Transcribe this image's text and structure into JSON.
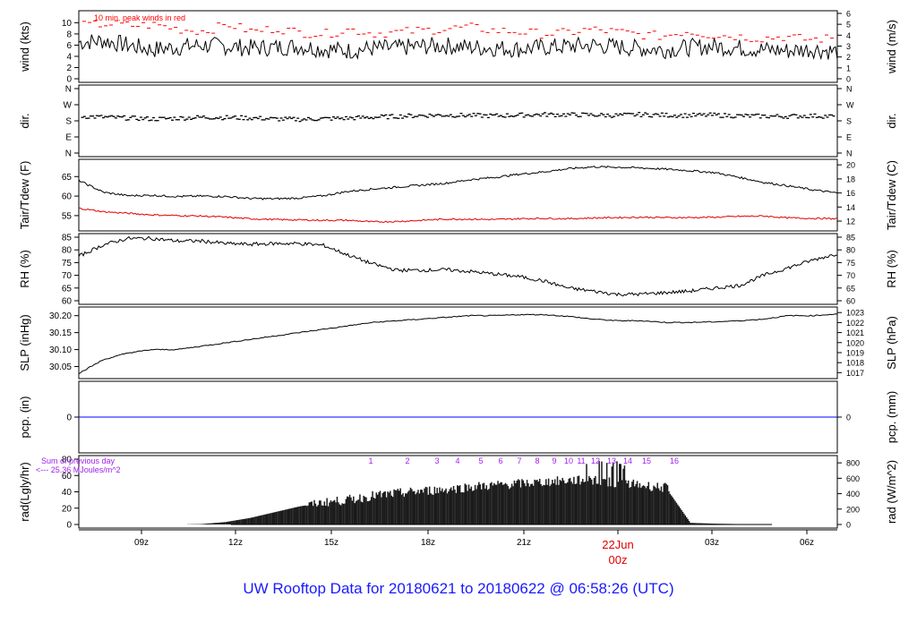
{
  "chart_data": [
    {
      "type": "line",
      "panel": "wind",
      "ylabel_left": "wind (kts)",
      "ylabel_right": "wind (m/s)",
      "ylim": [
        0,
        11.5
      ],
      "left_ticks": [
        "0",
        "2",
        "4",
        "6",
        "8",
        "10"
      ],
      "right_ticks": [
        "0",
        "1",
        "2",
        "3",
        "4",
        "5",
        "6"
      ],
      "annotation": "10 min. peak winds in red",
      "series": [
        {
          "values": [
            6.5,
            6.8,
            6.0,
            5.2,
            5.6,
            6.0,
            5.8,
            5.5,
            5.6,
            5.8,
            5.3,
            5.0,
            5.4,
            5.5,
            5.8,
            5.9,
            5.6,
            5.5,
            5.3,
            5.6,
            5.8,
            6.0,
            5.7,
            5.4,
            5.2,
            5.6,
            5.8,
            5.5,
            5.2,
            5.0,
            5.3,
            4.8
          ]
        },
        {
          "values": [
            9.5,
            9.8,
            9.5,
            9.6,
            8.8,
            8.5,
            9.7,
            8.4,
            9.0,
            8.2,
            8.0,
            8.8,
            8.1,
            8.3,
            8.6,
            8.9,
            9.2,
            8.6,
            8.4,
            8.0,
            8.2,
            8.8,
            8.4,
            7.9,
            7.6,
            8.5,
            7.8,
            7.6,
            7.2,
            7.5,
            7.0,
            7.2
          ],
          "color": "#ff0000"
        }
      ]
    },
    {
      "type": "scatter",
      "panel": "dir",
      "ylabel_left": "dir.",
      "ylabel_right": "dir.",
      "left_ticks": [
        "N",
        "E",
        "S",
        "W",
        "N"
      ],
      "right_ticks": [
        "N",
        "E",
        "S",
        "W",
        "N"
      ],
      "ylim": [
        0,
        360
      ],
      "series": [
        {
          "values": [
            205,
            200,
            195,
            190,
            195,
            200,
            198,
            196,
            190,
            188,
            192,
            195,
            200,
            205,
            210,
            212,
            210,
            208,
            212,
            215,
            214,
            213,
            210,
            215,
            212,
            210,
            212,
            208,
            206,
            205,
            208,
            205
          ]
        }
      ]
    },
    {
      "type": "line",
      "panel": "temperature",
      "ylabel_left": "Tair/Tdew (F)",
      "ylabel_right": "Tair/Tdew (C)",
      "left_ticks": [
        "55",
        "60",
        "65"
      ],
      "right_ticks": [
        "12",
        "14",
        "16",
        "18",
        "20"
      ],
      "ylim": [
        52,
        68.5
      ],
      "series": [
        {
          "values": [
            64,
            61,
            60.1,
            60.2,
            59.9,
            60,
            59.9,
            59.4,
            59.3,
            59.5,
            60.1,
            61.2,
            61.8,
            62.3,
            62.8,
            63.3,
            64.2,
            64.8,
            65.6,
            66.2,
            67,
            67.5,
            67.4,
            67.2,
            66.9,
            66.5,
            66,
            64.8,
            63.5,
            62.6,
            61.6,
            60.8
          ]
        },
        {
          "values": [
            56.9,
            56,
            55.6,
            55.2,
            55,
            54.9,
            54.6,
            54.2,
            54,
            53.9,
            53.8,
            53.8,
            53.4,
            53.5,
            53.8,
            54.1,
            54.1,
            54,
            54.2,
            54.3,
            54.2,
            54.4,
            54.5,
            54.6,
            54.5,
            54.5,
            54.6,
            54.8,
            54.9,
            54.4,
            54.3,
            54.2
          ],
          "color": "#ff0000"
        }
      ]
    },
    {
      "type": "line",
      "panel": "rh",
      "ylabel_left": "RH (%)",
      "ylabel_right": "RH (%)",
      "left_ticks": [
        "60",
        "65",
        "70",
        "75",
        "80",
        "85"
      ],
      "right_ticks": [
        "60",
        "65",
        "70",
        "75",
        "80",
        "85"
      ],
      "ylim": [
        60,
        85
      ],
      "series": [
        {
          "values": [
            77.5,
            82,
            84.5,
            84.5,
            83.5,
            83.5,
            82.5,
            82.2,
            82.5,
            82.5,
            81.8,
            78,
            74.5,
            72,
            72,
            72.2,
            71.5,
            70.5,
            69.5,
            67.8,
            65,
            63.8,
            62.5,
            62.6,
            63.2,
            63.8,
            65,
            66,
            70,
            73,
            76,
            78.5
          ]
        }
      ]
    },
    {
      "type": "line",
      "panel": "pressure",
      "ylabel_left": "SLP (inHg)",
      "ylabel_right": "SLP (hPa)",
      "left_ticks": [
        "30.05",
        "30.10",
        "30.15",
        "30.20"
      ],
      "right_ticks": [
        "1017",
        "1018",
        "1019",
        "1020",
        "1021",
        "1022",
        "1023"
      ],
      "ylim": [
        30.025,
        30.215
      ],
      "series": [
        {
          "values": [
            30.03,
            30.07,
            30.09,
            30.1,
            30.1,
            30.11,
            30.12,
            30.13,
            30.14,
            30.15,
            30.16,
            30.17,
            30.18,
            30.185,
            30.19,
            30.195,
            30.2,
            30.2,
            30.203,
            30.203,
            30.198,
            30.19,
            30.185,
            30.185,
            30.18,
            30.18,
            30.182,
            30.185,
            30.19,
            30.2,
            30.2,
            30.205
          ]
        }
      ]
    },
    {
      "type": "line",
      "panel": "precip",
      "ylabel_left": "pcp. (in)",
      "ylabel_right": "pcp. (mm)",
      "left_ticks": [
        "0"
      ],
      "right_ticks": [
        "0"
      ],
      "series": [
        {
          "values": [
            0,
            0
          ],
          "color": "#0000ff"
        }
      ]
    },
    {
      "type": "area",
      "panel": "radiation",
      "ylabel_left": "rad(Lgly/hr)",
      "ylabel_right": "rad (W/m^2)",
      "left_ticks": [
        "0",
        "20",
        "40",
        "60",
        "80"
      ],
      "right_ticks": [
        "0",
        "200",
        "400",
        "600",
        "800"
      ],
      "ylim": [
        0,
        80
      ],
      "annotation_top": "Sum of previous day",
      "annotation_bottom": "<--- 25.36 MJoules/m^2",
      "hour_labels": [
        "1",
        "2",
        "3",
        "4",
        "5",
        "6",
        "7",
        "8",
        "9",
        "10",
        "11",
        "12",
        "13",
        "14",
        "15",
        "16"
      ],
      "series": [
        {
          "values": [
            0,
            0,
            0,
            0,
            0,
            0.5,
            3,
            8,
            15,
            22,
            27,
            30,
            35,
            38,
            41,
            43,
            46,
            48,
            50,
            52,
            54,
            54,
            51,
            48,
            45,
            2,
            1,
            0.5,
            0,
            0,
            0,
            0
          ]
        }
      ]
    }
  ],
  "x_axis": {
    "tick_labels": [
      "09z",
      "12z",
      "15z",
      "18z",
      "21z",
      "22Jun",
      "03z",
      "06z"
    ],
    "date_label": "22Jun",
    "date_sub": "00z"
  },
  "footer": {
    "title": "UW Rooftop Data for 20180621  to  20180622 @ 06:58:26  (UTC)"
  },
  "colors": {
    "footer": "#1a1aff",
    "peak": "#ff0000",
    "dew": "#e00000",
    "precip": "#0000ff",
    "hours": "#a020f0",
    "date": "#e00000"
  }
}
